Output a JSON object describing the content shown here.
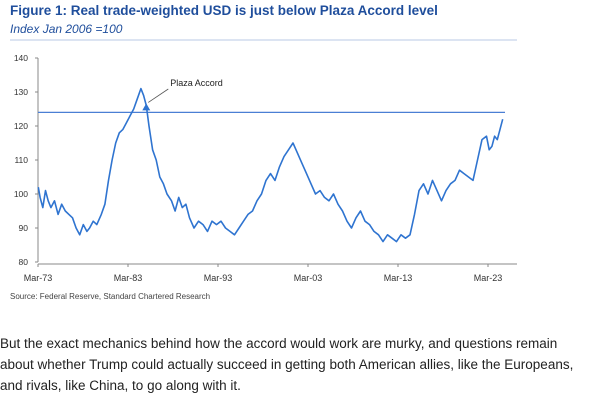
{
  "figure": {
    "title": "Figure 1: Real trade-weighted USD is just below Plaza Accord level",
    "subtitle": "Index Jan 2006 =100",
    "source": "Source: Federal Reserve, Standard Chartered Research"
  },
  "chart_data": {
    "type": "line",
    "title": "Figure 1: Real trade-weighted USD is just below Plaza Accord level",
    "subtitle": "Index Jan 2006 =100",
    "xlabel": "",
    "ylabel": "",
    "ylim": [
      80,
      140
    ],
    "yticks": [
      "140",
      "130",
      "120",
      "110",
      "100",
      "90",
      "80"
    ],
    "xticks": [
      "Mar-73",
      "Mar-83",
      "Mar-93",
      "Mar-03",
      "Mar-13",
      "Mar-23"
    ],
    "grid": false,
    "series_color": "#2f74d0",
    "reference_line": {
      "value": 124,
      "color": "#4a7fd4"
    },
    "annotation": {
      "text": "Plaza Accord",
      "x": 1985.2,
      "y": 124
    },
    "series": [
      {
        "x": [
          1973.2,
          1973.4,
          1973.7,
          1974.0,
          1974.3,
          1974.6,
          1975.0,
          1975.4,
          1975.8,
          1976.2,
          1976.6,
          1977.0,
          1977.4,
          1977.8,
          1978.2,
          1978.6,
          1978.9,
          1979.3,
          1979.7,
          1980.2,
          1980.6,
          1981.0,
          1981.4,
          1981.8,
          1982.2,
          1982.6,
          1983.0,
          1983.4,
          1983.8,
          1984.2,
          1984.6,
          1984.9,
          1985.2,
          1985.5,
          1985.9,
          1986.3,
          1986.7,
          1987.1,
          1987.5,
          1988.0,
          1988.4,
          1988.8,
          1989.2,
          1989.6,
          1990.0,
          1990.5,
          1991.0,
          1991.5,
          1992.0,
          1992.5,
          1993.0,
          1993.5,
          1994.0,
          1994.5,
          1995.0,
          1995.5,
          1996.0,
          1996.5,
          1997.0,
          1997.5,
          1998.0,
          1998.5,
          1999.0,
          1999.5,
          2000.0,
          2000.5,
          2001.0,
          2001.5,
          2002.0,
          2002.5,
          2003.0,
          2003.5,
          2004.0,
          2004.5,
          2005.0,
          2005.5,
          2006.0,
          2006.5,
          2007.0,
          2007.5,
          2008.0,
          2008.5,
          2009.0,
          2009.5,
          2010.0,
          2010.5,
          2011.0,
          2011.5,
          2012.0,
          2012.5,
          2013.0,
          2013.5,
          2014.0,
          2014.5,
          2015.0,
          2015.5,
          2016.0,
          2016.5,
          2017.0,
          2017.5,
          2018.0,
          2018.5,
          2019.0,
          2019.5,
          2020.0,
          2020.5,
          2021.0,
          2021.5,
          2022.0,
          2022.5,
          2023.0,
          2023.3,
          2023.6,
          2023.9,
          2024.2,
          2024.5,
          2024.8
        ],
        "values": [
          102,
          99,
          96,
          101,
          98,
          96,
          98,
          94,
          97,
          95,
          94,
          93,
          90,
          88,
          91,
          89,
          90,
          92,
          91,
          94,
          97,
          104,
          110,
          115,
          118,
          119,
          121,
          123,
          125,
          128,
          131,
          129,
          126,
          120,
          113,
          110,
          105,
          103,
          100,
          98,
          95,
          99,
          96,
          97,
          93,
          90,
          92,
          91,
          89,
          92,
          91,
          92,
          90,
          89,
          88,
          90,
          92,
          94,
          95,
          98,
          100,
          104,
          106,
          104,
          108,
          111,
          113,
          115,
          112,
          109,
          106,
          103,
          100,
          101,
          99,
          98,
          100,
          97,
          95,
          92,
          90,
          93,
          95,
          92,
          91,
          89,
          88,
          86,
          88,
          87,
          86,
          88,
          87,
          88,
          94,
          101,
          103,
          100,
          104,
          101,
          98,
          101,
          103,
          104,
          107,
          106,
          105,
          104,
          110,
          116,
          117,
          113,
          114,
          117,
          116,
          119,
          122
        ]
      }
    ]
  },
  "article": {
    "paragraph": "But the exact mechanics behind how the accord would work are murky, and questions remain about whether Trump could actually succeed in getting both American allies, like the Europeans, and rivals, like China, to go along with it."
  }
}
